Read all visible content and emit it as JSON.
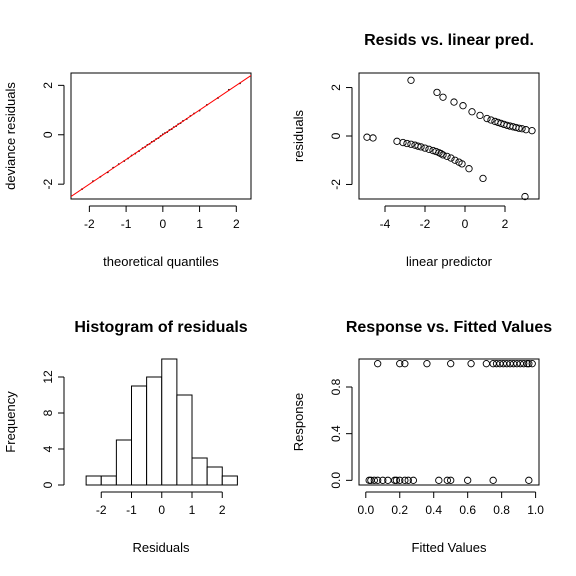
{
  "chart_data": [
    {
      "type": "scatter",
      "panel": "qq",
      "title": "",
      "xlabel": "theoretical quantiles",
      "ylabel": "deviance residuals",
      "xlim": [
        -2.5,
        2.4
      ],
      "ylim": [
        -2.6,
        2.5
      ],
      "xticks": [
        "-2",
        "-1",
        "0",
        "1",
        "2"
      ],
      "yticks": [
        "-2",
        "0",
        "2"
      ],
      "reference_line": {
        "color": "#ff0000",
        "x": [
          -2.6,
          2.5
        ],
        "y": [
          -2.6,
          2.5
        ]
      },
      "points": {
        "x": [
          -2.2,
          -1.9,
          -1.7,
          -1.5,
          -1.35,
          -1.2,
          -1.05,
          -0.95,
          -0.85,
          -0.75,
          -0.65,
          -0.55,
          -0.48,
          -0.42,
          -0.36,
          -0.3,
          -0.24,
          -0.18,
          -0.12,
          -0.06,
          0.0,
          0.06,
          0.12,
          0.18,
          0.24,
          0.3,
          0.36,
          0.42,
          0.48,
          0.55,
          0.65,
          0.75,
          0.85,
          1.0,
          1.2,
          1.5,
          1.8,
          2.1
        ],
        "y": [
          -2.2,
          -1.88,
          -1.7,
          -1.52,
          -1.33,
          -1.19,
          -1.06,
          -0.96,
          -0.84,
          -0.76,
          -0.66,
          -0.54,
          -0.49,
          -0.41,
          -0.37,
          -0.29,
          -0.25,
          -0.17,
          -0.13,
          -0.05,
          0.02,
          0.07,
          0.11,
          0.19,
          0.23,
          0.31,
          0.35,
          0.43,
          0.47,
          0.56,
          0.64,
          0.76,
          0.86,
          0.98,
          1.21,
          1.49,
          1.82,
          2.08
        ]
      }
    },
    {
      "type": "scatter",
      "panel": "resid-vs-pred",
      "title": "Resids vs. linear pred.",
      "xlabel": "linear predictor",
      "ylabel": "residuals",
      "xlim": [
        -5.3,
        3.7
      ],
      "ylim": [
        -2.6,
        2.6
      ],
      "xticks": [
        "-4",
        "-2",
        "0",
        "2"
      ],
      "yticks": [
        "-2",
        "0",
        "2"
      ],
      "points": {
        "x": [
          -4.9,
          -4.6,
          -3.4,
          -3.1,
          -2.9,
          -2.7,
          -2.5,
          -2.35,
          -2.2,
          -2.0,
          -1.8,
          -1.6,
          -1.45,
          -1.3,
          -1.2,
          -1.1,
          -0.9,
          -0.7,
          -0.5,
          -0.3,
          -0.15,
          0.2,
          0.9,
          -2.7,
          -1.4,
          -1.1,
          -0.55,
          -0.1,
          0.35,
          0.75,
          1.1,
          1.3,
          1.5,
          1.65,
          1.8,
          1.95,
          2.1,
          2.25,
          2.4,
          2.55,
          2.7,
          2.85,
          3.05,
          3.35,
          3.0
        ],
        "y": [
          -0.05,
          -0.08,
          -0.22,
          -0.27,
          -0.31,
          -0.34,
          -0.38,
          -0.42,
          -0.45,
          -0.5,
          -0.55,
          -0.6,
          -0.64,
          -0.69,
          -0.73,
          -0.78,
          -0.84,
          -0.91,
          -1.0,
          -1.08,
          -1.15,
          -1.35,
          -1.75,
          2.3,
          1.8,
          1.6,
          1.4,
          1.25,
          1.0,
          0.85,
          0.72,
          0.66,
          0.6,
          0.56,
          0.52,
          0.48,
          0.44,
          0.41,
          0.38,
          0.35,
          0.32,
          0.3,
          0.26,
          0.22,
          -2.5
        ]
      }
    },
    {
      "type": "histogram",
      "panel": "hist",
      "title": "Histogram of residuals",
      "xlabel": "Residuals",
      "ylabel": "Frequency",
      "xlim": [
        -3.0,
        2.95
      ],
      "ylim": [
        0,
        14
      ],
      "xticks": [
        "-2",
        "-1",
        "0",
        "1",
        "2"
      ],
      "yticks": [
        "0",
        "4",
        "8",
        "12"
      ],
      "bin_edges": [
        -2.5,
        -2.0,
        -1.5,
        -1.0,
        -0.5,
        0.0,
        0.5,
        1.0,
        1.5,
        2.0,
        2.5
      ],
      "counts": [
        1,
        1,
        5,
        11,
        12,
        14,
        10,
        3,
        2,
        1
      ]
    },
    {
      "type": "scatter",
      "panel": "resp-vs-fitted",
      "title": "Response vs. Fitted Values",
      "xlabel": "Fitted Values",
      "ylabel": "Response",
      "xlim": [
        -0.04,
        1.02
      ],
      "ylim": [
        -0.04,
        1.04
      ],
      "xticks": [
        "0.0",
        "0.2",
        "0.4",
        "0.6",
        "0.8",
        "1.0"
      ],
      "yticks": [
        "0.0",
        "0.4",
        "0.8"
      ],
      "points": {
        "x": [
          0.07,
          0.2,
          0.23,
          0.36,
          0.5,
          0.62,
          0.71,
          0.75,
          0.77,
          0.79,
          0.81,
          0.83,
          0.85,
          0.87,
          0.89,
          0.91,
          0.93,
          0.95,
          0.96,
          0.98,
          0.02,
          0.03,
          0.05,
          0.07,
          0.1,
          0.13,
          0.17,
          0.18,
          0.2,
          0.23,
          0.25,
          0.28,
          0.43,
          0.48,
          0.5,
          0.6,
          0.75,
          0.96
        ],
        "y": [
          1,
          1,
          1,
          1,
          1,
          1,
          1,
          1,
          1,
          1,
          1,
          1,
          1,
          1,
          1,
          1,
          1,
          1,
          1,
          1,
          0,
          0,
          0,
          0,
          0,
          0,
          0,
          0,
          0,
          0,
          0,
          0,
          0,
          0,
          0,
          0,
          0,
          0
        ]
      }
    }
  ]
}
